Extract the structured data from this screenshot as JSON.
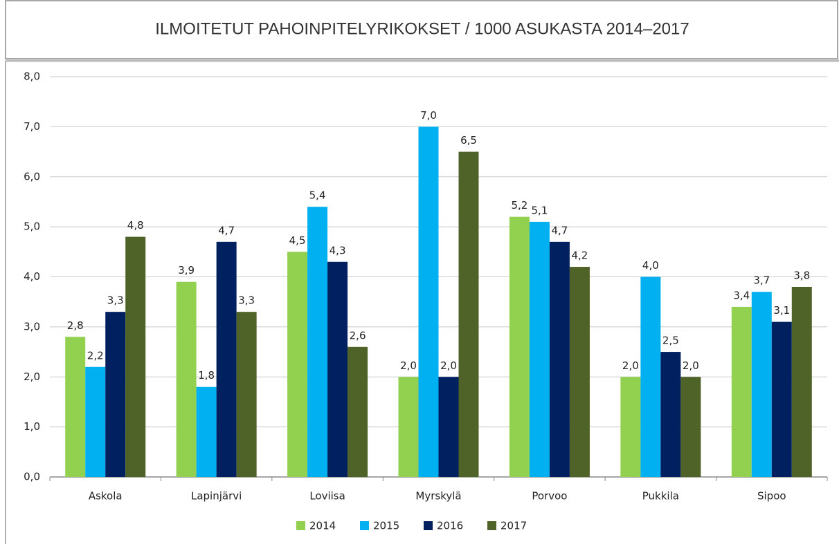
{
  "chart_data": {
    "type": "bar",
    "title": "ILMOITETUT PAHOINPITELYRIKOKSET / 1000 ASUKASTA 2014–2017",
    "categories": [
      "Askola",
      "Lapinjärvi",
      "Loviisa",
      "Myrskylä",
      "Porvoo",
      "Pukkila",
      "Sipoo"
    ],
    "series": [
      {
        "name": "2014",
        "color": "#92d050",
        "values": [
          2.8,
          3.9,
          4.5,
          2.0,
          5.2,
          2.0,
          3.4
        ],
        "value_labels": [
          "2,8",
          "3,9",
          "4,5",
          "2,0",
          "5,2",
          "2,0",
          "3,4"
        ]
      },
      {
        "name": "2015",
        "color": "#00b0f0",
        "values": [
          2.2,
          1.8,
          5.4,
          7.0,
          5.1,
          4.0,
          3.7
        ],
        "value_labels": [
          "2,2",
          "1,8",
          "5,4",
          "7,0",
          "5,1",
          "4,0",
          "3,7"
        ]
      },
      {
        "name": "2016",
        "color": "#002060",
        "values": [
          3.3,
          4.7,
          4.3,
          2.0,
          4.7,
          2.5,
          3.1
        ],
        "value_labels": [
          "3,3",
          "4,7",
          "4,3",
          "2,0",
          "4,7",
          "2,5",
          "3,1"
        ]
      },
      {
        "name": "2017",
        "color": "#4f6228",
        "values": [
          4.8,
          3.3,
          2.6,
          6.5,
          4.2,
          2.0,
          3.8
        ],
        "value_labels": [
          "4,8",
          "3,3",
          "2,6",
          "6,5",
          "4,2",
          "2,0",
          "3,8"
        ]
      }
    ],
    "ylim": [
      0,
      8
    ],
    "yticks": [
      {
        "value": 0,
        "label": "0,0"
      },
      {
        "value": 1,
        "label": "1,0"
      },
      {
        "value": 2,
        "label": "2,0"
      },
      {
        "value": 3,
        "label": "3,0"
      },
      {
        "value": 4,
        "label": "4,0"
      },
      {
        "value": 5,
        "label": "5,0"
      },
      {
        "value": 6,
        "label": "6,0"
      },
      {
        "value": 7,
        "label": "7,0"
      },
      {
        "value": 8,
        "label": "8,0"
      }
    ],
    "grid": true,
    "legend": "bottom"
  }
}
